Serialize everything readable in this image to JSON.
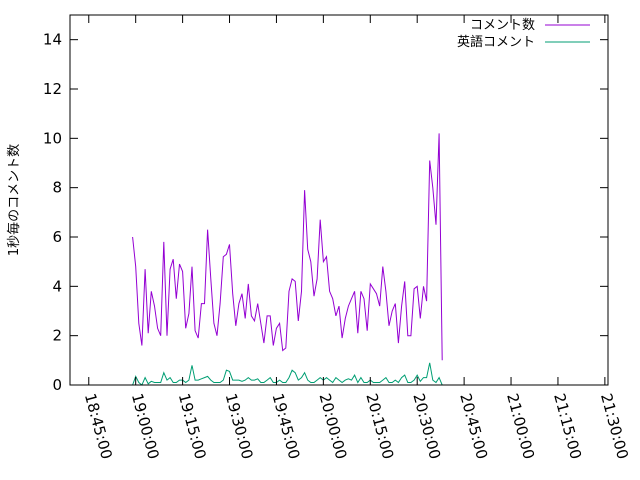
{
  "chart_data": {
    "type": "line",
    "ylabel": "1秒毎のコメント数",
    "xlabel": "",
    "ylim": [
      0,
      15
    ],
    "yticks": [
      "0",
      "2",
      "4",
      "6",
      "8",
      "10",
      "12",
      "14"
    ],
    "xlim": [
      "18:39:00",
      "21:31:00"
    ],
    "xticks": [
      "18:45:00",
      "19:00:00",
      "19:15:00",
      "19:30:00",
      "19:45:00",
      "20:00:00",
      "20:15:00",
      "20:30:00",
      "20:45:00",
      "21:00:00",
      "21:15:00",
      "21:30:00"
    ],
    "legend_position": "top-right",
    "grid": false,
    "series": [
      {
        "name": "コメント数",
        "color": "#9400d3",
        "points": [
          [
            "18:59:00",
            6.0
          ],
          [
            "19:00:00",
            4.8
          ],
          [
            "19:01:00",
            2.5
          ],
          [
            "19:02:00",
            1.6
          ],
          [
            "19:03:00",
            4.7
          ],
          [
            "19:04:00",
            2.1
          ],
          [
            "19:05:00",
            3.8
          ],
          [
            "19:06:00",
            3.2
          ],
          [
            "19:07:00",
            2.3
          ],
          [
            "19:08:00",
            2.0
          ],
          [
            "19:09:00",
            5.8
          ],
          [
            "19:10:00",
            2.0
          ],
          [
            "19:11:00",
            4.7
          ],
          [
            "19:12:00",
            5.1
          ],
          [
            "19:13:00",
            3.5
          ],
          [
            "19:14:00",
            4.9
          ],
          [
            "19:15:00",
            4.6
          ],
          [
            "19:16:00",
            2.3
          ],
          [
            "19:17:00",
            2.9
          ],
          [
            "19:18:00",
            4.8
          ],
          [
            "19:19:00",
            2.2
          ],
          [
            "19:20:00",
            1.9
          ],
          [
            "19:21:00",
            3.3
          ],
          [
            "19:22:00",
            3.3
          ],
          [
            "19:23:00",
            6.3
          ],
          [
            "19:24:00",
            4.3
          ],
          [
            "19:25:00",
            2.5
          ],
          [
            "19:26:00",
            2.0
          ],
          [
            "19:27:00",
            3.3
          ],
          [
            "19:28:00",
            5.2
          ],
          [
            "19:29:00",
            5.3
          ],
          [
            "19:30:00",
            5.7
          ],
          [
            "19:31:00",
            3.7
          ],
          [
            "19:32:00",
            2.4
          ],
          [
            "19:33:00",
            3.3
          ],
          [
            "19:34:00",
            3.7
          ],
          [
            "19:35:00",
            2.7
          ],
          [
            "19:36:00",
            4.1
          ],
          [
            "19:37:00",
            2.8
          ],
          [
            "19:38:00",
            2.6
          ],
          [
            "19:39:00",
            3.3
          ],
          [
            "19:40:00",
            2.5
          ],
          [
            "19:41:00",
            1.7
          ],
          [
            "19:42:00",
            2.8
          ],
          [
            "19:43:00",
            2.8
          ],
          [
            "19:44:00",
            1.6
          ],
          [
            "19:45:00",
            2.3
          ],
          [
            "19:46:00",
            2.5
          ],
          [
            "19:47:00",
            1.4
          ],
          [
            "19:48:00",
            1.5
          ],
          [
            "19:49:00",
            3.8
          ],
          [
            "19:50:00",
            4.3
          ],
          [
            "19:51:00",
            4.2
          ],
          [
            "19:52:00",
            2.6
          ],
          [
            "19:53:00",
            3.8
          ],
          [
            "19:54:00",
            7.9
          ],
          [
            "19:55:00",
            5.5
          ],
          [
            "19:56:00",
            5.0
          ],
          [
            "19:57:00",
            3.6
          ],
          [
            "19:58:00",
            4.3
          ],
          [
            "19:59:00",
            6.7
          ],
          [
            "20:00:00",
            5.0
          ],
          [
            "20:01:00",
            5.2
          ],
          [
            "20:02:00",
            3.8
          ],
          [
            "20:03:00",
            3.5
          ],
          [
            "20:04:00",
            2.8
          ],
          [
            "20:05:00",
            3.2
          ],
          [
            "20:06:00",
            1.9
          ],
          [
            "20:07:00",
            2.7
          ],
          [
            "20:08:00",
            3.2
          ],
          [
            "20:09:00",
            3.5
          ],
          [
            "20:10:00",
            3.8
          ],
          [
            "20:11:00",
            2.1
          ],
          [
            "20:12:00",
            3.8
          ],
          [
            "20:13:00",
            3.5
          ],
          [
            "20:14:00",
            2.2
          ],
          [
            "20:15:00",
            4.1
          ],
          [
            "20:16:00",
            3.9
          ],
          [
            "20:17:00",
            3.7
          ],
          [
            "20:18:00",
            3.2
          ],
          [
            "20:19:00",
            4.8
          ],
          [
            "20:20:00",
            3.8
          ],
          [
            "20:21:00",
            2.4
          ],
          [
            "20:22:00",
            3.0
          ],
          [
            "20:23:00",
            3.3
          ],
          [
            "20:24:00",
            1.7
          ],
          [
            "20:25:00",
            3.2
          ],
          [
            "20:26:00",
            4.2
          ],
          [
            "20:27:00",
            2.0
          ],
          [
            "20:28:00",
            2.0
          ],
          [
            "20:29:00",
            3.9
          ],
          [
            "20:30:00",
            4.0
          ],
          [
            "20:31:00",
            2.7
          ],
          [
            "20:32:00",
            4.0
          ],
          [
            "20:33:00",
            3.4
          ],
          [
            "20:34:00",
            9.1
          ],
          [
            "20:35:00",
            8.0
          ],
          [
            "20:36:00",
            6.5
          ],
          [
            "20:37:00",
            10.2
          ],
          [
            "20:38:00",
            1.0
          ]
        ]
      },
      {
        "name": "英語コメント",
        "color": "#009e73",
        "points": [
          [
            "18:59:00",
            0.0
          ],
          [
            "19:00:00",
            0.35
          ],
          [
            "19:01:00",
            0.1
          ],
          [
            "19:02:00",
            0.0
          ],
          [
            "19:03:00",
            0.3
          ],
          [
            "19:04:00",
            0.05
          ],
          [
            "19:05:00",
            0.15
          ],
          [
            "19:06:00",
            0.1
          ],
          [
            "19:07:00",
            0.1
          ],
          [
            "19:08:00",
            0.1
          ],
          [
            "19:09:00",
            0.5
          ],
          [
            "19:10:00",
            0.2
          ],
          [
            "19:11:00",
            0.3
          ],
          [
            "19:12:00",
            0.1
          ],
          [
            "19:13:00",
            0.1
          ],
          [
            "19:14:00",
            0.2
          ],
          [
            "19:15:00",
            0.2
          ],
          [
            "19:16:00",
            0.1
          ],
          [
            "19:17:00",
            0.2
          ],
          [
            "19:18:00",
            0.8
          ],
          [
            "19:19:00",
            0.2
          ],
          [
            "19:20:00",
            0.2
          ],
          [
            "19:21:00",
            0.25
          ],
          [
            "19:22:00",
            0.3
          ],
          [
            "19:23:00",
            0.35
          ],
          [
            "19:24:00",
            0.2
          ],
          [
            "19:25:00",
            0.1
          ],
          [
            "19:26:00",
            0.1
          ],
          [
            "19:27:00",
            0.1
          ],
          [
            "19:28:00",
            0.2
          ],
          [
            "19:29:00",
            0.6
          ],
          [
            "19:30:00",
            0.55
          ],
          [
            "19:31:00",
            0.2
          ],
          [
            "19:32:00",
            0.2
          ],
          [
            "19:33:00",
            0.2
          ],
          [
            "19:34:00",
            0.15
          ],
          [
            "19:35:00",
            0.2
          ],
          [
            "19:36:00",
            0.3
          ],
          [
            "19:37:00",
            0.2
          ],
          [
            "19:38:00",
            0.2
          ],
          [
            "19:39:00",
            0.25
          ],
          [
            "19:40:00",
            0.1
          ],
          [
            "19:41:00",
            0.1
          ],
          [
            "19:42:00",
            0.2
          ],
          [
            "19:43:00",
            0.3
          ],
          [
            "19:44:00",
            0.1
          ],
          [
            "19:45:00",
            0.1
          ],
          [
            "19:46:00",
            0.2
          ],
          [
            "19:47:00",
            0.1
          ],
          [
            "19:48:00",
            0.1
          ],
          [
            "19:49:00",
            0.3
          ],
          [
            "19:50:00",
            0.6
          ],
          [
            "19:51:00",
            0.5
          ],
          [
            "19:52:00",
            0.2
          ],
          [
            "19:53:00",
            0.3
          ],
          [
            "19:54:00",
            0.5
          ],
          [
            "19:55:00",
            0.2
          ],
          [
            "19:56:00",
            0.1
          ],
          [
            "19:57:00",
            0.1
          ],
          [
            "19:58:00",
            0.2
          ],
          [
            "19:59:00",
            0.3
          ],
          [
            "20:00:00",
            0.2
          ],
          [
            "20:01:00",
            0.3
          ],
          [
            "20:02:00",
            0.2
          ],
          [
            "20:03:00",
            0.1
          ],
          [
            "20:04:00",
            0.3
          ],
          [
            "20:05:00",
            0.2
          ],
          [
            "20:06:00",
            0.1
          ],
          [
            "20:07:00",
            0.2
          ],
          [
            "20:08:00",
            0.25
          ],
          [
            "20:09:00",
            0.2
          ],
          [
            "20:10:00",
            0.4
          ],
          [
            "20:11:00",
            0.1
          ],
          [
            "20:12:00",
            0.3
          ],
          [
            "20:13:00",
            0.1
          ],
          [
            "20:14:00",
            0.1
          ],
          [
            "20:15:00",
            0.2
          ],
          [
            "20:16:00",
            0.1
          ],
          [
            "20:17:00",
            0.1
          ],
          [
            "20:18:00",
            0.1
          ],
          [
            "20:19:00",
            0.2
          ],
          [
            "20:20:00",
            0.3
          ],
          [
            "20:21:00",
            0.1
          ],
          [
            "20:22:00",
            0.1
          ],
          [
            "20:23:00",
            0.2
          ],
          [
            "20:24:00",
            0.1
          ],
          [
            "20:25:00",
            0.3
          ],
          [
            "20:26:00",
            0.4
          ],
          [
            "20:27:00",
            0.1
          ],
          [
            "20:28:00",
            0.1
          ],
          [
            "20:29:00",
            0.2
          ],
          [
            "20:30:00",
            0.4
          ],
          [
            "20:31:00",
            0.15
          ],
          [
            "20:32:00",
            0.3
          ],
          [
            "20:33:00",
            0.3
          ],
          [
            "20:34:00",
            0.9
          ],
          [
            "20:35:00",
            0.2
          ],
          [
            "20:36:00",
            0.1
          ],
          [
            "20:37:00",
            0.3
          ],
          [
            "20:38:00",
            0.0
          ]
        ]
      }
    ]
  }
}
